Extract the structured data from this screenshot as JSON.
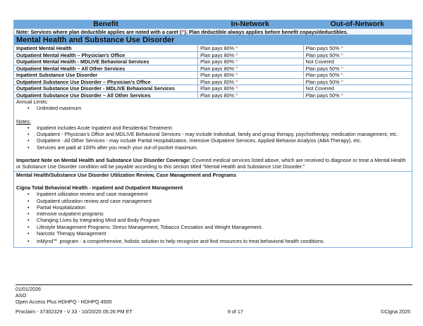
{
  "header": {
    "benefit": "Benefit",
    "in_network": "In-Network",
    "out_network": "Out-of-Network"
  },
  "note": {
    "pre": "Note: Services where plan deductible applies are noted with a caret (",
    "caret": "^",
    "post": "). Plan deductible always applies before benefit copays/deductibles."
  },
  "section_title": "Mental Health and Substance Use Disorder",
  "rows": [
    {
      "benefit": "Inpatient Mental Health",
      "in": "Plan pays 80%",
      "in_caret": "^",
      "out": "Plan pays 50%",
      "out_caret": "^"
    },
    {
      "benefit": "Outpatient Mental Health – Physician's Office",
      "in": "Plan pays 80%",
      "in_caret": "^",
      "out": "Plan pays 50%",
      "out_caret": "^"
    },
    {
      "benefit": "Outpatient Mental Health - MDLIVE Behavioral Services",
      "in": "Plan pays 80%",
      "in_caret": "^",
      "out": "Not Covered",
      "out_caret": ""
    },
    {
      "benefit": "Outpatient Mental Health – All Other Services",
      "in": "Plan pays 80%",
      "in_caret": "^",
      "out": "Plan pays 50%",
      "out_caret": "^"
    },
    {
      "benefit": "Inpatient Substance Use Disorder",
      "in": "Plan pays 80%",
      "in_caret": "^",
      "out": "Plan pays 50%",
      "out_caret": "^"
    },
    {
      "benefit": "Outpatient Substance Use Disorder – Physician's Office",
      "in": "Plan pays 80%",
      "in_caret": "^",
      "out": "Plan pays 50%",
      "out_caret": "^"
    },
    {
      "benefit": "Outpatient Substance Use Disorder - MDLIVE Behavioral Services",
      "in": "Plan pays 80%",
      "in_caret": "^",
      "out": "Not Covered",
      "out_caret": ""
    },
    {
      "benefit": "Outpatient Substance Use Disorder – All Other Services",
      "in": "Plan pays 80%",
      "in_caret": "^",
      "out": "Plan pays 50%",
      "out_caret": "^"
    }
  ],
  "annual": {
    "label": "Annual Limits:",
    "items": [
      "Unlimited maximum"
    ]
  },
  "notes": {
    "label": "Notes:",
    "items": [
      "Inpatient includes Acute Inpatient and Residential Treatment.",
      "Outpatient - Physician's Office and MDLIVE Behavioral Services - may include Individual, family and group therapy, psychotherapy, medication management, etc.",
      "Outpatient - All Other Services - may include Partial Hospitalization, Intensive Outpatient Services, Applied Behavior Analysis (ABA Therapy), etc.",
      "Services are paid at 100% after you reach your out-of-pocket maximum."
    ]
  },
  "important": {
    "label": "Important Note on Mental Health and Substance Use Disorder Coverage:",
    "text": " Covered medical services listed above, which are received to diagnose or treat a Mental Health or Substance Use Disorder condition will be payable according to this section titled \"Mental Health and Substance Use Disorder.\""
  },
  "programs": {
    "title": "Mental Health/Substance Use Disorder Utilization Review, Case Management and Programs",
    "subtitle": "Cigna Total Behavioral Health - Inpatient and Outpatient Management",
    "items": [
      "Inpatient utilization review and case management",
      "Outpatient utilization review and case management",
      "Partial Hospitalization",
      "Intensive outpatient programs",
      "Changing Lives by Integrating Mind and Body Program",
      "Lifestyle Management Programs: Stress Management, Tobacco Cessation and Weight Management.",
      "Narcotic Therapy Management",
      "inMynd℠ program - a comprehensive, holistic solution to help recognize and find resources to treat behavioral health conditions."
    ]
  },
  "footer": {
    "date": "01/01/2026",
    "type": "ASO",
    "plan": "Open Access Plus HDHPQ - HDHPQ 4500",
    "proclaim": "Proclaim - 37302329 - V 33 - 10/20/25 05:26 PM ET",
    "page": "9 of 17",
    "copyright": "©Cigna 2025"
  },
  "colors": {
    "header_bg": "#6fa8dc",
    "caret": "#d0343a",
    "border": "#7eb2dd"
  }
}
